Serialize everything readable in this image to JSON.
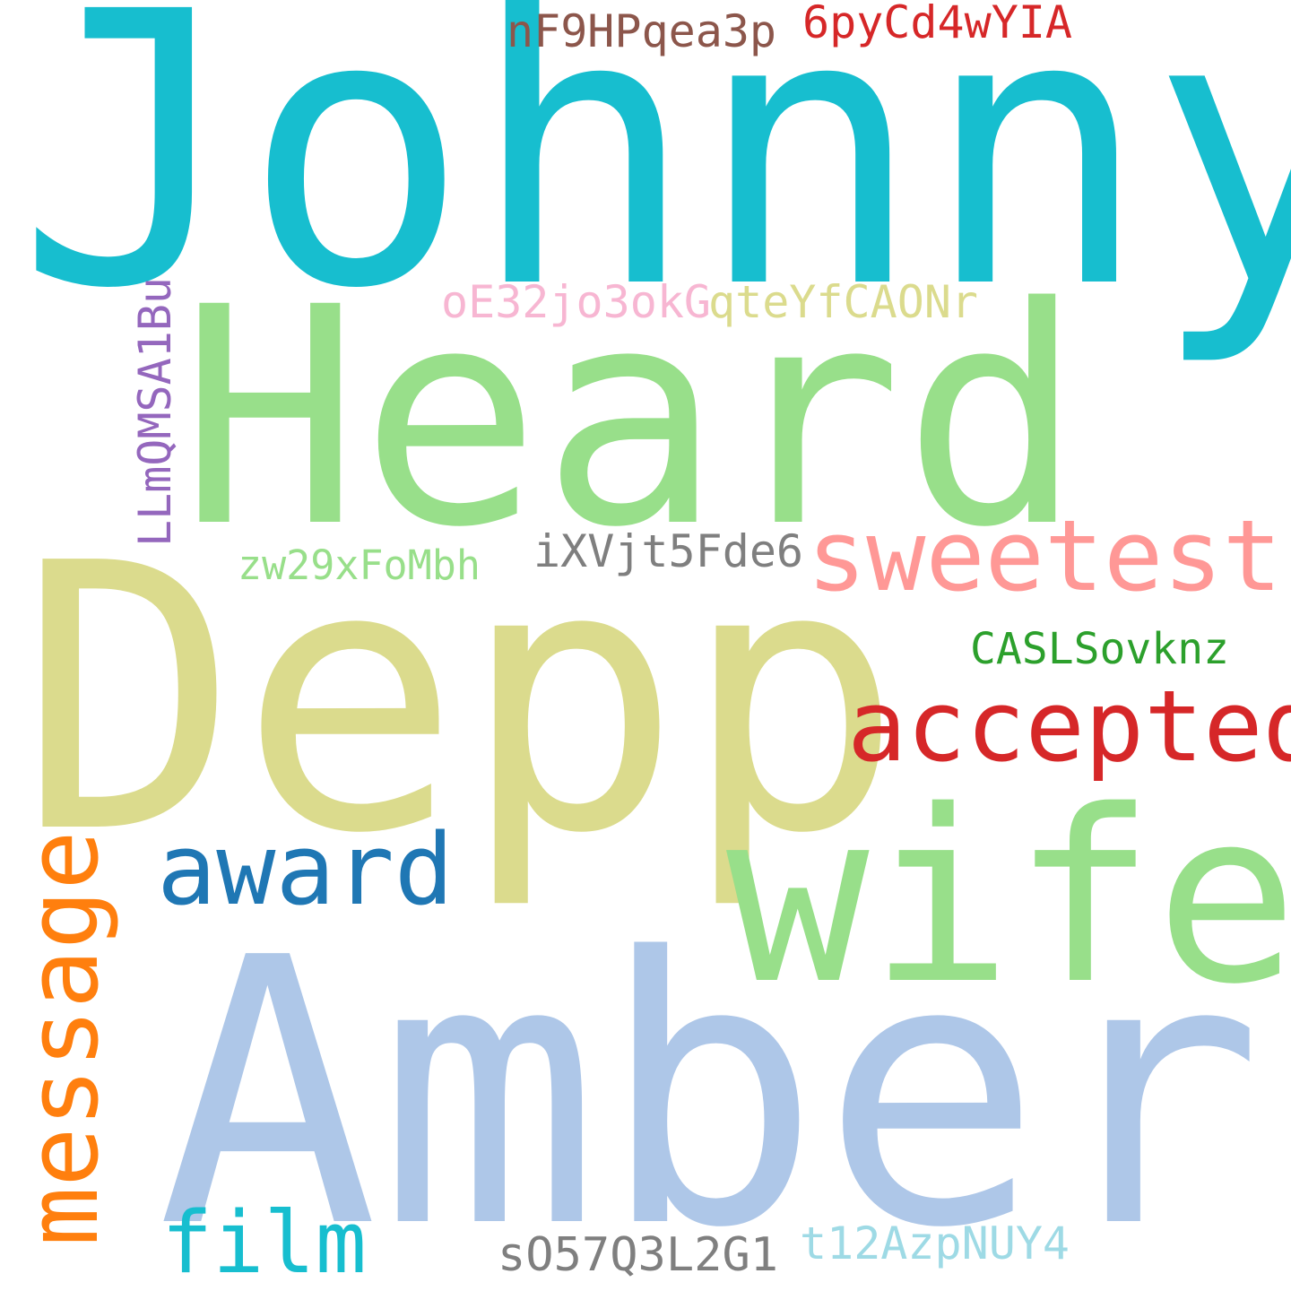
{
  "words": {
    "johnny": {
      "text": "Johnny",
      "color": "#17becf"
    },
    "heard": {
      "text": "Heard",
      "color": "#98df8a"
    },
    "depp": {
      "text": "Depp",
      "color": "#dbdb8d"
    },
    "amber": {
      "text": "Amber",
      "color": "#aec7e8"
    },
    "wife": {
      "text": "wife",
      "color": "#98df8a"
    },
    "sweetest": {
      "text": "sweetest",
      "color": "#ff9896"
    },
    "accepted": {
      "text": "accepted",
      "color": "#d62728"
    },
    "award": {
      "text": "award",
      "color": "#1f77b4"
    },
    "film": {
      "text": "film",
      "color": "#17becf"
    },
    "message": {
      "text": "message",
      "color": "#ff7f0e"
    },
    "llmqmsa": {
      "text": "LLmQMSA1Bu",
      "color": "#9467bd"
    },
    "nf9h": {
      "text": "nF9HPqea3p",
      "color": "#8c564b"
    },
    "6pyc": {
      "text": "6pyCd4wYIA",
      "color": "#d62728"
    },
    "oe32": {
      "text": "oE32jo3okG",
      "color": "#f7b6d2"
    },
    "qtey": {
      "text": "qteYfCAONr",
      "color": "#dbdb8d"
    },
    "ixvj": {
      "text": "iXVjt5Fde6",
      "color": "#7f7f7f"
    },
    "zw29": {
      "text": "zw29xFoMbh",
      "color": "#98df8a"
    },
    "casl": {
      "text": "CASLSovknz",
      "color": "#2ca02c"
    },
    "s057": {
      "text": "sO57Q3L2G1",
      "color": "#7f7f7f"
    },
    "t12a": {
      "text": "t12AzpNUY4",
      "color": "#9edae5"
    }
  }
}
